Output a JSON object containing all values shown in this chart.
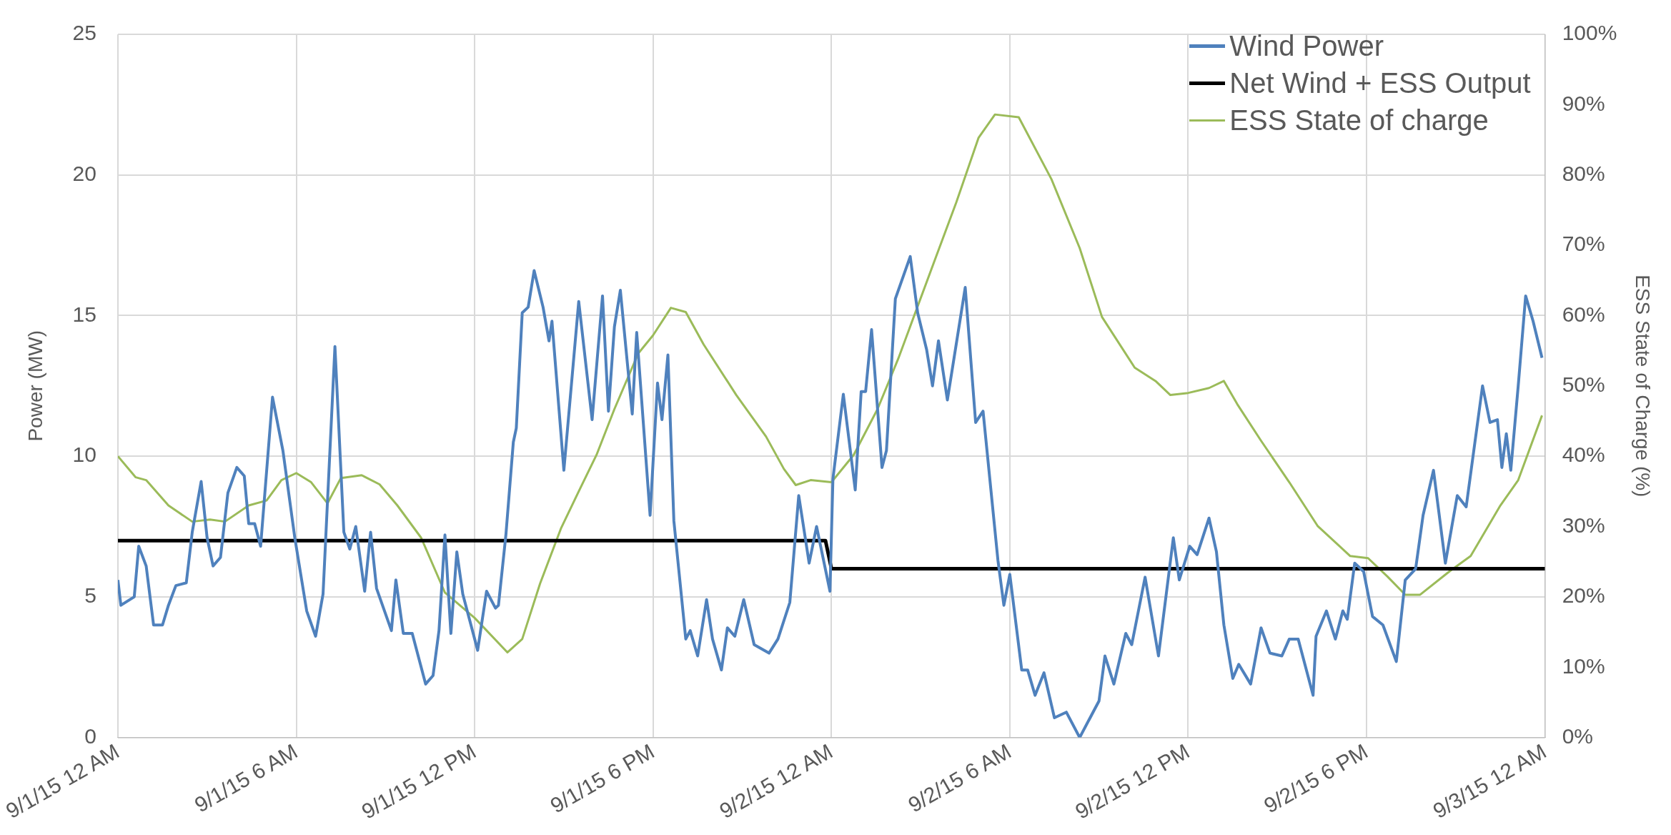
{
  "chart_data": {
    "type": "line",
    "ylabel": "Power (MW)",
    "y2label": "ESS State of Charge (%)",
    "xlim": [
      "--09-01T00:00",
      "--09-03T00:00"
    ],
    "xticks": [
      {
        "value": "--09-01T00:00",
        "label": "9/1/15 12 AM"
      },
      {
        "value": "--09-01T06:00",
        "label": "9/1/15 6 AM"
      },
      {
        "value": "--09-01T12:00",
        "label": "9/1/15 12 PM"
      },
      {
        "value": "--09-01T18:00",
        "label": "9/1/15 6 PM"
      },
      {
        "value": "--09-02T00:00",
        "label": "9/2/15 12 AM"
      },
      {
        "value": "--09-02T06:00",
        "label": "9/2/15 6 AM"
      },
      {
        "value": "--09-02T12:00",
        "label": "9/2/15 12 PM"
      },
      {
        "value": "--09-02T18:00",
        "label": "9/2/15 6 PM"
      },
      {
        "value": "--09-03T00:00",
        "label": "9/3/15 12 AM"
      }
    ],
    "ylim": [
      0,
      25
    ],
    "yticks": [
      0,
      5,
      10,
      15,
      20,
      25
    ],
    "y2lim": [
      0,
      100
    ],
    "y2ticks": [
      {
        "value": 0,
        "label": "0%"
      },
      {
        "value": 10,
        "label": "10%"
      },
      {
        "value": 20,
        "label": "20%"
      },
      {
        "value": 30,
        "label": "30%"
      },
      {
        "value": 40,
        "label": "40%"
      },
      {
        "value": 50,
        "label": "50%"
      },
      {
        "value": 60,
        "label": "60%"
      },
      {
        "value": 70,
        "label": "70%"
      },
      {
        "value": 80,
        "label": "80%"
      },
      {
        "value": 90,
        "label": "90%"
      },
      {
        "value": 100,
        "label": "100%"
      }
    ],
    "grid": true,
    "legend": "top right",
    "marker": "none",
    "line_style": "solid",
    "series": [
      {
        "name": "Wind Power",
        "color": "#4f81bd",
        "x": [
          "--09-01T00:00",
          "--09-01T00:06",
          "--09-01T00:33",
          "--09-01T00:42",
          "--09-01T00:57",
          "--09-01T01:12",
          "--09-01T01:30",
          "--09-01T01:42",
          "--09-01T01:57",
          "--09-01T02:18",
          "--09-01T02:30",
          "--09-01T02:48",
          "--09-01T03:00",
          "--09-01T03:12",
          "--09-01T03:27",
          "--09-01T03:42",
          "--09-01T04:00",
          "--09-01T04:15",
          "--09-01T04:24",
          "--09-01T04:36",
          "--09-01T04:48",
          "--09-01T05:12",
          "--09-01T05:33",
          "--09-01T05:57",
          "--09-01T06:21",
          "--09-01T06:39",
          "--09-01T06:54",
          "--09-01T07:18",
          "--09-01T07:36",
          "--09-01T07:48",
          "--09-01T08:00",
          "--09-01T08:18",
          "--09-01T08:30",
          "--09-01T08:42",
          "--09-01T09:12",
          "--09-01T09:21",
          "--09-01T09:36",
          "--09-01T09:54",
          "--09-01T10:06",
          "--09-01T10:21",
          "--09-01T10:36",
          "--09-01T10:48",
          "--09-01T11:00",
          "--09-01T11:12",
          "--09-01T11:24",
          "--09-01T11:36",
          "--09-01T11:48",
          "--09-01T12:06",
          "--09-01T12:24",
          "--09-01T12:42",
          "--09-01T12:48",
          "--09-01T13:03",
          "--09-01T13:18",
          "--09-01T13:24",
          "--09-01T13:36",
          "--09-01T13:48",
          "--09-01T14:00",
          "--09-01T14:18",
          "--09-01T14:30",
          "--09-01T14:36",
          "--09-01T15:00",
          "--09-01T15:30",
          "--09-01T15:57",
          "--09-01T16:18",
          "--09-01T16:30",
          "--09-01T16:42",
          "--09-01T16:54",
          "--09-01T17:18",
          "--09-01T17:27",
          "--09-01T17:54",
          "--09-01T18:09",
          "--09-01T18:18",
          "--09-01T18:30",
          "--09-01T18:42",
          "--09-01T19:06",
          "--09-01T19:15",
          "--09-01T19:30",
          "--09-01T19:48",
          "--09-01T20:00",
          "--09-01T20:18",
          "--09-01T20:30",
          "--09-01T20:45",
          "--09-01T21:03",
          "--09-01T21:24",
          "--09-01T21:54",
          "--09-01T22:12",
          "--09-01T22:36",
          "--09-01T22:54",
          "--09-01T23:15",
          "--09-01T23:30",
          "--09-01T23:57",
          "--09-02T00:03",
          "--09-02T00:24",
          "--09-02T00:48",
          "--09-02T01:00",
          "--09-02T01:09",
          "--09-02T01:21",
          "--09-02T01:42",
          "--09-02T01:51",
          "--09-02T02:09",
          "--09-02T02:39",
          "--09-02T02:54",
          "--09-02T03:12",
          "--09-02T03:24",
          "--09-02T03:36",
          "--09-02T03:54",
          "--09-02T04:30",
          "--09-02T04:51",
          "--09-02T05:06",
          "--09-02T05:36",
          "--09-02T05:48",
          "--09-02T06:00",
          "--09-02T06:24",
          "--09-02T06:36",
          "--09-02T06:51",
          "--09-02T07:09",
          "--09-02T07:30",
          "--09-02T07:54",
          "--09-02T08:21",
          "--09-02T09:00",
          "--09-02T09:12",
          "--09-02T09:30",
          "--09-02T09:54",
          "--09-02T10:06",
          "--09-02T10:33",
          "--09-02T11:00",
          "--09-02T11:30",
          "--09-02T11:42",
          "--09-02T12:03",
          "--09-02T12:18",
          "--09-02T12:42",
          "--09-02T12:57",
          "--09-02T13:12",
          "--09-02T13:30",
          "--09-02T13:42",
          "--09-02T14:06",
          "--09-02T14:27",
          "--09-02T14:45",
          "--09-02T15:09",
          "--09-02T15:24",
          "--09-02T15:42",
          "--09-02T16:12",
          "--09-02T16:18",
          "--09-02T16:39",
          "--09-02T16:57",
          "--09-02T17:12",
          "--09-02T17:21",
          "--09-02T17:36",
          "--09-02T17:54",
          "--09-02T18:12",
          "--09-02T18:33",
          "--09-02T19:00",
          "--09-02T19:18",
          "--09-02T19:39",
          "--09-02T19:54",
          "--09-02T20:15",
          "--09-02T20:39",
          "--09-02T21:03",
          "--09-02T21:21",
          "--09-02T21:54",
          "--09-02T22:09",
          "--09-02T22:24",
          "--09-02T22:33",
          "--09-02T22:42",
          "--09-02T22:51",
          "--09-02T23:06",
          "--09-02T23:21",
          "--09-02T23:36",
          "--09-02T23:54"
        ],
        "values": [
          5.6,
          4.7,
          5,
          6.8,
          6.1,
          4,
          4,
          4.7,
          5.4,
          5.5,
          7.3,
          9.1,
          7.1,
          6.1,
          6.4,
          8.7,
          9.6,
          9.3,
          7.6,
          7.6,
          6.8,
          12.1,
          10.2,
          7.1,
          4.5,
          3.6,
          5.1,
          13.9,
          7.3,
          6.7,
          7.5,
          5.2,
          7.3,
          5.3,
          3.8,
          5.6,
          3.7,
          3.7,
          2.9,
          1.9,
          2.2,
          3.8,
          7.2,
          3.7,
          6.6,
          5.1,
          4.3,
          3.1,
          5.2,
          4.6,
          4.7,
          7.2,
          10.5,
          11,
          15.1,
          15.3,
          16.6,
          15.3,
          14.1,
          14.8,
          9.5,
          15.5,
          11.3,
          15.7,
          11.6,
          14.6,
          15.9,
          11.5,
          14.4,
          7.9,
          12.6,
          11.3,
          13.6,
          7.7,
          3.5,
          3.8,
          2.9,
          4.9,
          3.5,
          2.4,
          3.9,
          3.6,
          4.9,
          3.3,
          3,
          3.5,
          4.8,
          8.6,
          6.2,
          7.5,
          5.2,
          9.2,
          12.2,
          8.8,
          12.3,
          12.3,
          14.5,
          9.6,
          10.2,
          15.6,
          17.1,
          15.1,
          13.8,
          12.5,
          14.1,
          12,
          16,
          11.2,
          11.6,
          6.3,
          4.7,
          5.8,
          2.4,
          2.4,
          1.5,
          2.3,
          0.7,
          0.9,
          0,
          1.3,
          2.9,
          1.9,
          3.7,
          3.3,
          5.7,
          2.9,
          7.1,
          5.6,
          6.8,
          6.5,
          7.8,
          6.6,
          4,
          2.1,
          2.6,
          1.9,
          3.9,
          3,
          2.9,
          3.5,
          3.5,
          1.5,
          3.6,
          4.5,
          3.5,
          4.5,
          4.2,
          6.2,
          5.9,
          4.3,
          4,
          2.7,
          5.6,
          6,
          7.9,
          9.5,
          6.2,
          8.6,
          8.2,
          12.5,
          11.2,
          11.3,
          9.6,
          10.8,
          9.5,
          12.5,
          15.7,
          14.8,
          13.5
        ]
      },
      {
        "name": "Net Wind + ESS Output",
        "color": "#000000",
        "x": [
          "--09-01T00:00",
          "--09-01T23:48",
          "--09-02T00:00",
          "--09-03T00:00"
        ],
        "values": [
          7,
          7,
          6,
          6
        ]
      },
      {
        "name": "ESS State of charge",
        "color": "#9bbb59",
        "axis": "y2",
        "x": [
          "--09-01T00:00",
          "--09-01T00:36",
          "--09-01T00:57",
          "--09-01T01:42",
          "--09-01T02:30",
          "--09-01T03:06",
          "--09-01T03:36",
          "--09-01T04:24",
          "--09-01T05:00",
          "--09-01T05:30",
          "--09-01T06:00",
          "--09-01T06:30",
          "--09-01T07:03",
          "--09-01T07:30",
          "--09-01T08:12",
          "--09-01T08:48",
          "--09-01T09:24",
          "--09-01T10:12",
          "--09-01T11:00",
          "--09-01T12:00",
          "--09-01T13:06",
          "--09-01T13:36",
          "--09-01T14:12",
          "--09-01T14:54",
          "--09-01T15:30",
          "--09-01T16:06",
          "--09-01T16:42",
          "--09-01T17:30",
          "--09-01T18:00",
          "--09-01T18:36",
          "--09-01T19:06",
          "--09-01T19:42",
          "--09-01T20:48",
          "--09-01T21:48",
          "--09-01T22:24",
          "--09-01T22:48",
          "--09-01T23:18",
          "--09-02T00:00",
          "--09-02T00:45",
          "--09-02T01:33",
          "--09-02T02:15",
          "--09-02T03:27",
          "--09-02T04:12",
          "--09-02T04:57",
          "--09-02T05:30",
          "--09-02T06:18",
          "--09-02T07:24",
          "--09-02T08:21",
          "--09-02T09:06",
          "--09-02T10:12",
          "--09-02T10:54",
          "--09-02T11:24",
          "--09-02T12:00",
          "--09-02T12:42",
          "--09-02T13:12",
          "--09-02T13:39",
          "--09-02T14:27",
          "--09-02T15:24",
          "--09-02T16:21",
          "--09-02T17:27",
          "--09-02T18:03",
          "--09-02T18:42",
          "--09-02T19:18",
          "--09-02T19:48",
          "--09-02T20:45",
          "--09-02T21:30",
          "--09-02T22:30",
          "--09-02T23:06",
          "--09-02T23:54"
        ],
        "values": [
          40,
          37,
          36.6,
          33,
          30.7,
          31,
          30.7,
          33,
          33.7,
          36.6,
          37.6,
          36.3,
          33.3,
          36.9,
          37.3,
          36,
          33,
          28.4,
          20.6,
          17,
          12.1,
          14,
          21.9,
          29.7,
          35,
          40.2,
          46.7,
          54.6,
          57.2,
          61.1,
          60.5,
          55.9,
          48.7,
          42.8,
          38.2,
          35.9,
          36.6,
          36.3,
          40.2,
          46.7,
          53.9,
          67.6,
          76.1,
          85.3,
          88.6,
          88.2,
          79.4,
          69.6,
          59.8,
          52.6,
          50.7,
          48.7,
          49,
          49.7,
          50.7,
          47.4,
          42.2,
          36.3,
          30.1,
          25.8,
          25.5,
          22.9,
          20.3,
          20.3,
          23.5,
          25.8,
          33,
          36.6,
          45.8
        ]
      }
    ]
  }
}
